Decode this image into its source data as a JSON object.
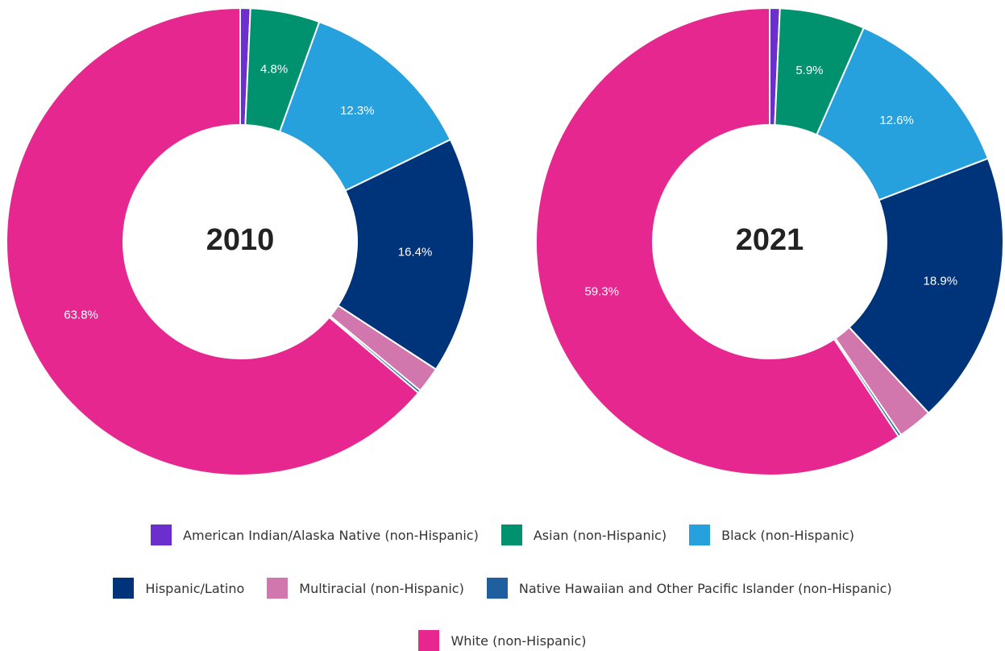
{
  "chart_data": [
    {
      "type": "pie",
      "title": "2010",
      "categories": [
        "American Indian/Alaska Native (non-Hispanic)",
        "Asian (non-Hispanic)",
        "Black (non-Hispanic)",
        "Hispanic/Latino",
        "Multiracial (non-Hispanic)",
        "Native Hawaiian and Other Pacific Islander (non-Hispanic)",
        "White (non-Hispanic)"
      ],
      "colors": [
        "#6a2fcc",
        "#00916e",
        "#27a0de",
        "#00347a",
        "#d277ae",
        "#1f5fa0",
        "#e6278f"
      ],
      "values": [
        0.7,
        4.8,
        12.3,
        16.4,
        1.8,
        0.2,
        63.8
      ],
      "value_labels": [
        null,
        "4.8%",
        "12.3%",
        "16.4%",
        null,
        null,
        "63.8%"
      ]
    },
    {
      "type": "pie",
      "title": "2021",
      "categories": [
        "American Indian/Alaska Native (non-Hispanic)",
        "Asian (non-Hispanic)",
        "Black (non-Hispanic)",
        "Hispanic/Latino",
        "Multiracial (non-Hispanic)",
        "Native Hawaiian and Other Pacific Islander (non-Hispanic)",
        "White (non-Hispanic)"
      ],
      "colors": [
        "#6a2fcc",
        "#00916e",
        "#27a0de",
        "#00347a",
        "#d277ae",
        "#1f5fa0",
        "#e6278f"
      ],
      "values": [
        0.7,
        5.9,
        12.6,
        18.9,
        2.4,
        0.2,
        59.3
      ],
      "value_labels": [
        null,
        "5.9%",
        "12.6%",
        "18.9%",
        null,
        null,
        "59.3%"
      ]
    }
  ]
}
